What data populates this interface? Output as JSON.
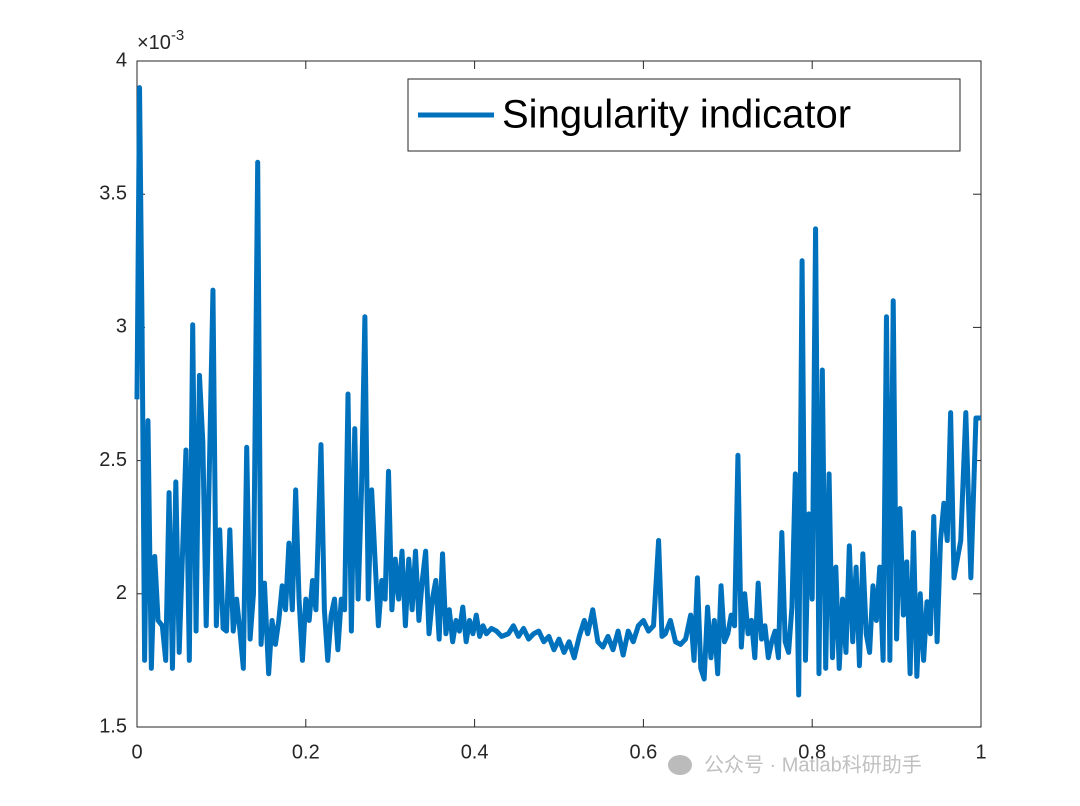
{
  "chart_data": {
    "type": "line",
    "y_exponent_base": "×10",
    "y_exponent": "-3",
    "watermark": "公众号 · Matlab科研助手",
    "legend": "top-right",
    "xlim": [
      0,
      1
    ],
    "xticks": [
      0,
      0.2,
      0.4,
      0.6,
      0.8,
      1
    ],
    "ylim": [
      1.5,
      4
    ],
    "yticks": [
      1.5,
      2,
      2.5,
      3,
      3.5,
      4
    ],
    "x": [
      0,
      0.003,
      0.006,
      0.009,
      0.013,
      0.017,
      0.021,
      0.025,
      0.03,
      0.034,
      0.038,
      0.042,
      0.046,
      0.05,
      0.054,
      0.058,
      0.062,
      0.066,
      0.07,
      0.074,
      0.078,
      0.082,
      0.09,
      0.094,
      0.098,
      0.102,
      0.106,
      0.11,
      0.114,
      0.118,
      0.122,
      0.126,
      0.13,
      0.134,
      0.138,
      0.143,
      0.147,
      0.151,
      0.156,
      0.16,
      0.164,
      0.168,
      0.172,
      0.176,
      0.18,
      0.184,
      0.188,
      0.192,
      0.196,
      0.2,
      0.204,
      0.208,
      0.212,
      0.218,
      0.222,
      0.226,
      0.23,
      0.234,
      0.238,
      0.242,
      0.246,
      0.25,
      0.254,
      0.258,
      0.262,
      0.266,
      0.27,
      0.274,
      0.278,
      0.282,
      0.286,
      0.29,
      0.294,
      0.298,
      0.302,
      0.306,
      0.31,
      0.314,
      0.318,
      0.322,
      0.326,
      0.33,
      0.334,
      0.338,
      0.342,
      0.346,
      0.35,
      0.354,
      0.358,
      0.362,
      0.366,
      0.37,
      0.374,
      0.378,
      0.382,
      0.386,
      0.39,
      0.394,
      0.398,
      0.402,
      0.406,
      0.41,
      0.414,
      0.42,
      0.426,
      0.432,
      0.44,
      0.446,
      0.452,
      0.458,
      0.464,
      0.47,
      0.476,
      0.482,
      0.488,
      0.494,
      0.5,
      0.506,
      0.512,
      0.518,
      0.524,
      0.53,
      0.534,
      0.54,
      0.546,
      0.552,
      0.558,
      0.564,
      0.57,
      0.576,
      0.582,
      0.588,
      0.594,
      0.6,
      0.606,
      0.612,
      0.618,
      0.622,
      0.626,
      0.632,
      0.638,
      0.644,
      0.65,
      0.656,
      0.66,
      0.664,
      0.668,
      0.672,
      0.676,
      0.68,
      0.684,
      0.688,
      0.692,
      0.696,
      0.7,
      0.704,
      0.708,
      0.712,
      0.716,
      0.72,
      0.724,
      0.728,
      0.732,
      0.736,
      0.74,
      0.744,
      0.748,
      0.752,
      0.756,
      0.76,
      0.764,
      0.768,
      0.772,
      0.776,
      0.78,
      0.784,
      0.788,
      0.792,
      0.796,
      0.8,
      0.804,
      0.808,
      0.812,
      0.816,
      0.82,
      0.824,
      0.828,
      0.832,
      0.836,
      0.84,
      0.844,
      0.848,
      0.852,
      0.856,
      0.86,
      0.864,
      0.868,
      0.872,
      0.876,
      0.88,
      0.884,
      0.888,
      0.892,
      0.896,
      0.9,
      0.904,
      0.908,
      0.912,
      0.916,
      0.92,
      0.924,
      0.928,
      0.932,
      0.936,
      0.94,
      0.944,
      0.948,
      0.952,
      0.956,
      0.96,
      0.964,
      0.968,
      0.976,
      0.982,
      0.988,
      0.994,
      1
    ],
    "series": [
      {
        "name": "Singularity indicator",
        "color": "#0072bd",
        "values": [
          2.73,
          3.9,
          3.0,
          1.75,
          2.65,
          1.72,
          2.14,
          1.9,
          1.88,
          1.75,
          2.38,
          1.72,
          2.42,
          1.78,
          2.16,
          2.54,
          1.75,
          3.01,
          1.86,
          2.82,
          2.57,
          1.88,
          3.14,
          1.88,
          2.24,
          1.87,
          1.86,
          2.24,
          1.86,
          1.98,
          1.86,
          1.72,
          2.55,
          1.83,
          2.0,
          3.62,
          1.81,
          2.04,
          1.7,
          1.9,
          1.81,
          1.9,
          2.03,
          1.94,
          2.19,
          1.94,
          2.39,
          1.98,
          1.75,
          1.98,
          1.9,
          2.05,
          1.94,
          2.56,
          1.94,
          1.75,
          1.92,
          1.98,
          1.79,
          1.98,
          1.94,
          2.75,
          1.86,
          2.62,
          1.98,
          2.39,
          3.04,
          1.98,
          2.39,
          2.13,
          1.88,
          2.05,
          1.98,
          2.46,
          1.94,
          2.13,
          1.98,
          2.16,
          1.88,
          2.13,
          1.94,
          2.16,
          1.9,
          2.05,
          2.16,
          1.85,
          1.98,
          2.05,
          1.83,
          2.15,
          1.85,
          1.94,
          1.82,
          1.9,
          1.86,
          1.95,
          1.82,
          1.9,
          1.85,
          1.92,
          1.84,
          1.88,
          1.85,
          1.87,
          1.86,
          1.84,
          1.85,
          1.88,
          1.84,
          1.87,
          1.83,
          1.85,
          1.86,
          1.82,
          1.84,
          1.79,
          1.83,
          1.78,
          1.82,
          1.76,
          1.84,
          1.9,
          1.85,
          1.94,
          1.82,
          1.8,
          1.84,
          1.79,
          1.86,
          1.77,
          1.86,
          1.82,
          1.88,
          1.9,
          1.86,
          1.88,
          2.2,
          1.84,
          1.85,
          1.9,
          1.82,
          1.81,
          1.83,
          1.92,
          1.75,
          2.06,
          1.72,
          1.68,
          1.95,
          1.76,
          1.9,
          1.7,
          2.03,
          1.82,
          1.85,
          1.92,
          1.88,
          2.52,
          1.8,
          2.0,
          1.85,
          1.9,
          1.76,
          2.04,
          1.83,
          1.88,
          1.76,
          1.82,
          1.86,
          1.76,
          2.23,
          1.82,
          1.78,
          1.95,
          2.45,
          1.62,
          3.25,
          1.75,
          2.3,
          1.98,
          3.37,
          1.7,
          2.84,
          1.72,
          2.45,
          1.76,
          2.1,
          1.72,
          1.98,
          1.78,
          2.18,
          1.82,
          2.1,
          1.73,
          2.15,
          1.85,
          1.78,
          2.03,
          1.9,
          2.1,
          1.75,
          3.04,
          1.75,
          3.1,
          1.83,
          2.32,
          1.92,
          2.12,
          1.7,
          2.23,
          1.69,
          2.0,
          1.75,
          1.97,
          1.85,
          2.29,
          1.82,
          2.2,
          2.34,
          2.2,
          2.68,
          2.06,
          2.2,
          2.68,
          2.06,
          2.66,
          2.66
        ]
      }
    ]
  }
}
